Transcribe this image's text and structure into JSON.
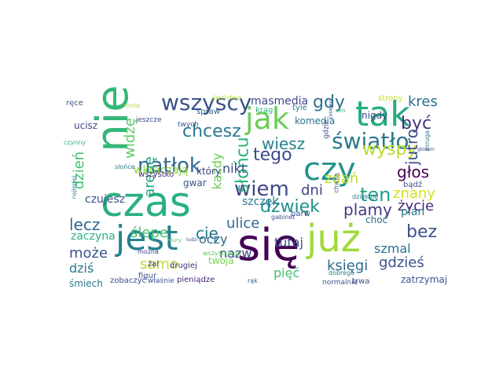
{
  "colors": {
    "background": "#ffffff"
  },
  "words": [
    {
      "text": "się",
      "color": "#440154"
    },
    {
      "text": "czas",
      "color": "#2ab07f"
    },
    {
      "text": "nie",
      "color": "#35b779"
    },
    {
      "text": "jest",
      "color": "#26828e"
    },
    {
      "text": "już",
      "color": "#a0da39"
    },
    {
      "text": "tak",
      "color": "#25ac82"
    },
    {
      "text": "jak",
      "color": "#6ccd5a"
    },
    {
      "text": "czy",
      "color": "#21918c"
    },
    {
      "text": "wszyscy",
      "color": "#3b528b"
    },
    {
      "text": "światło",
      "color": "#2a788e"
    },
    {
      "text": "natłok",
      "color": "#31688e"
    },
    {
      "text": "ten",
      "color": "#1f9e89"
    },
    {
      "text": "wiem",
      "color": "#3e4989"
    },
    {
      "text": "tego",
      "color": "#3e4989"
    },
    {
      "text": "chcesz",
      "color": "#2a788e"
    },
    {
      "text": "wyspy",
      "color": "#b5de2b"
    },
    {
      "text": "słońcu",
      "color": "#2ab07f"
    },
    {
      "text": "dźwięk",
      "color": "#21918c"
    },
    {
      "text": "bez",
      "color": "#3b528b"
    },
    {
      "text": "gdy",
      "color": "#2c728e"
    },
    {
      "text": "być",
      "color": "#46327e"
    },
    {
      "text": "głos",
      "color": "#440154"
    },
    {
      "text": "wiesz",
      "color": "#26828e"
    },
    {
      "text": "jutro",
      "color": "#3b528b"
    },
    {
      "text": "kres",
      "color": "#2c728e"
    },
    {
      "text": "zdań",
      "color": "#c2df23"
    },
    {
      "text": "znany",
      "color": "#d8e219"
    },
    {
      "text": "dzień",
      "color": "#44bf70"
    },
    {
      "text": "widzę",
      "color": "#5ec962"
    },
    {
      "text": "arenę",
      "color": "#1fa088"
    },
    {
      "text": "lecz",
      "color": "#31688e"
    },
    {
      "text": "może",
      "color": "#3b528b"
    },
    {
      "text": "dziś",
      "color": "#2a788e"
    },
    {
      "text": "nikt",
      "color": "#3e4989"
    },
    {
      "text": "ulice",
      "color": "#31688e"
    },
    {
      "text": "dni",
      "color": "#414487"
    },
    {
      "text": "plamy",
      "color": "#443983"
    },
    {
      "text": "życie",
      "color": "#482878"
    },
    {
      "text": "oczy",
      "color": "#31688e"
    },
    {
      "text": "tutaj",
      "color": "#3b528b"
    },
    {
      "text": "ślepe",
      "color": "#44bf70"
    },
    {
      "text": "cię",
      "color": "#2a788e"
    },
    {
      "text": "samo",
      "color": "#b5de2b"
    },
    {
      "text": "nazw",
      "color": "#3e4989"
    },
    {
      "text": "szmal",
      "color": "#2c728e"
    },
    {
      "text": "gdzieś",
      "color": "#3b528b"
    },
    {
      "text": "pięć",
      "color": "#44bf70"
    },
    {
      "text": "księgi",
      "color": "#31688e"
    },
    {
      "text": "każdy",
      "color": "#6ccd5a"
    },
    {
      "text": "czujesz",
      "color": "#3b528b"
    },
    {
      "text": "masmedia",
      "color": "#3e4989"
    },
    {
      "text": "komedia",
      "color": "#2c728e"
    },
    {
      "text": "wkraczają",
      "color": "#90d743"
    },
    {
      "text": "zaczyna",
      "color": "#2ab07f"
    },
    {
      "text": "ucisz",
      "color": "#3e4989"
    },
    {
      "text": "szczęk",
      "color": "#2a788e"
    },
    {
      "text": "plan",
      "color": "#2a788e"
    },
    {
      "text": "choć",
      "color": "#31688e"
    },
    {
      "text": "gwar",
      "color": "#3b528b"
    },
    {
      "text": "który",
      "color": "#3e4989"
    },
    {
      "text": "wszystko",
      "color": "#482878"
    },
    {
      "text": "twoja",
      "color": "#7ad151"
    },
    {
      "text": "zatrzymaj",
      "color": "#3b528b"
    },
    {
      "text": "śmiech",
      "color": "#2a788e"
    },
    {
      "text": "zobaczyć",
      "color": "#3e4989"
    },
    {
      "text": "pieniądze",
      "color": "#482878"
    },
    {
      "text": "żal",
      "color": "#46327e"
    },
    {
      "text": "drugiej",
      "color": "#472c7a"
    },
    {
      "text": "figur",
      "color": "#3b528b"
    },
    {
      "text": "barw",
      "color": "#3b528b"
    },
    {
      "text": "nigdy",
      "color": "#3e4989"
    },
    {
      "text": "tyle",
      "color": "#2c728e"
    },
    {
      "text": "krąg",
      "color": "#2ab07f"
    },
    {
      "text": "spraw",
      "color": "#31688e"
    },
    {
      "text": "strony",
      "color": "#c2df23"
    },
    {
      "text": "świństwo",
      "color": "#b5de2b"
    },
    {
      "text": "ręce",
      "color": "#3b528b"
    },
    {
      "text": "mnie",
      "color": "#b5de2b"
    },
    {
      "text": "jeszcze",
      "color": "#3e4989"
    },
    {
      "text": "twych",
      "color": "#3b528b"
    },
    {
      "text": "czynny",
      "color": "#35b779"
    },
    {
      "text": "słońce",
      "color": "#2a788e"
    },
    {
      "text": "dziękuję",
      "color": "#2a788e"
    },
    {
      "text": "bądź",
      "color": "#3b528b"
    },
    {
      "text": "trwa",
      "color": "#3b528b"
    },
    {
      "text": "gdzie",
      "color": "#3e4989"
    },
    {
      "text": "można",
      "color": "#414487"
    },
    {
      "text": "wszystkiego",
      "color": "#5ec962"
    },
    {
      "text": "normalnie",
      "color": "#3b528b"
    },
    {
      "text": "dobrego",
      "color": "#2a788e"
    },
    {
      "text": "rąk",
      "color": "#31688e"
    },
    {
      "text": "właśnie",
      "color": "#3b528b"
    },
    {
      "text": "gabinet",
      "color": "#3b528b"
    },
    {
      "text": "najlepiej",
      "color": "#2a788e"
    },
    {
      "text": "zaświeci",
      "color": "#3b528b"
    },
    {
      "text": "mruga",
      "color": "#2a788e"
    },
    {
      "text": "sen",
      "color": "#35b779"
    },
    {
      "text": "chwila",
      "color": "#3b528b"
    },
    {
      "text": "głosem",
      "color": "#3e4989"
    },
    {
      "text": "mury",
      "color": "#5ec962"
    },
    {
      "text": "ludzi",
      "color": "#3b528b"
    }
  ]
}
